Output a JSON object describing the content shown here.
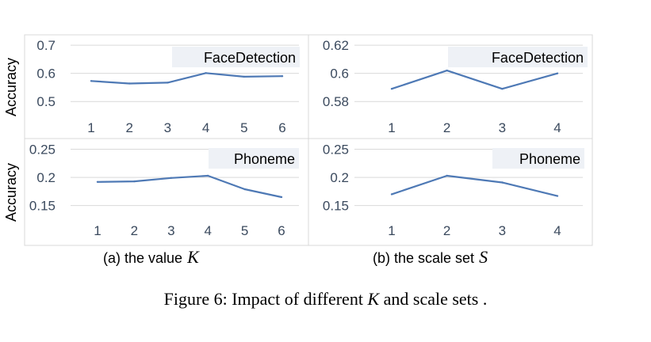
{
  "y_axis_label": "Accuracy",
  "captions": {
    "a": {
      "prefix": "(a) the value",
      "symbol": "K"
    },
    "b": {
      "prefix": "(b) the scale set",
      "symbol": "S"
    },
    "figure": {
      "prefix": "Figure 6: Impact of different",
      "symbol": "K",
      "suffix": "and scale sets ."
    }
  },
  "colors": {
    "line": "#4e79b5",
    "grid": "#d9d9d9",
    "tick": "#3b4a5e",
    "label_bg": "#eef1f6"
  },
  "chart_data": [
    {
      "type": "line",
      "dataset": "FaceDetection",
      "ylabel": "Accuracy",
      "categories": [
        "1",
        "2",
        "3",
        "4",
        "5",
        "6"
      ],
      "yticks": [
        "0.5",
        "0.6",
        "0.7"
      ],
      "ylim": [
        0.45,
        0.72
      ],
      "series": [
        {
          "values": [
            0.573,
            0.564,
            0.567,
            0.601,
            0.588,
            0.59
          ]
        }
      ]
    },
    {
      "type": "line",
      "dataset": "FaceDetection",
      "ylabel": "",
      "categories": [
        "1",
        "2",
        "3",
        "4"
      ],
      "yticks": [
        "0.58",
        "0.6",
        "0.62"
      ],
      "ylim": [
        0.57,
        0.624
      ],
      "series": [
        {
          "values": [
            0.589,
            0.602,
            0.589,
            0.6
          ]
        }
      ]
    },
    {
      "type": "line",
      "dataset": "Phoneme",
      "ylabel": "Accuracy",
      "categories": [
        "1",
        "2",
        "3",
        "4",
        "5",
        "6"
      ],
      "yticks": [
        "0.15",
        "0.2",
        "0.25"
      ],
      "ylim": [
        0.127,
        0.262
      ],
      "series": [
        {
          "values": [
            0.192,
            0.193,
            0.199,
            0.203,
            0.179,
            0.165
          ]
        }
      ]
    },
    {
      "type": "line",
      "dataset": "Phoneme",
      "ylabel": "",
      "categories": [
        "1",
        "2",
        "3",
        "4"
      ],
      "yticks": [
        "0.15",
        "0.2",
        "0.25"
      ],
      "ylim": [
        0.127,
        0.262
      ],
      "series": [
        {
          "values": [
            0.17,
            0.203,
            0.191,
            0.167
          ]
        }
      ]
    }
  ]
}
